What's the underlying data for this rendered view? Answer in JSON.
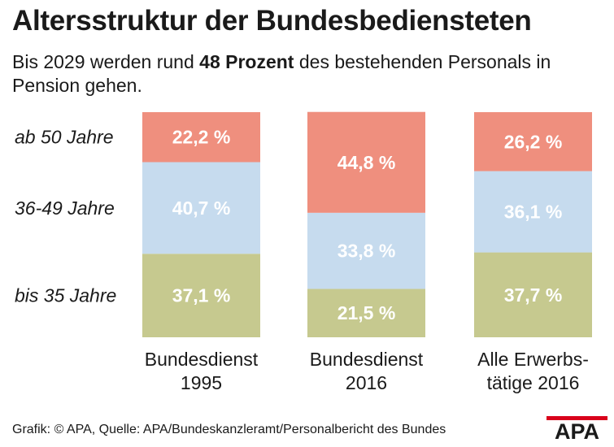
{
  "header": {
    "title": "Altersstruktur der Bundesbediensteten",
    "subtitle_before": "Bis 2029 werden rund ",
    "subtitle_bold": "48 Prozent",
    "subtitle_after": " des bestehenden Personals in Pension gehen."
  },
  "chart_data": {
    "type": "bar",
    "stacked": true,
    "normalized": true,
    "categories": [
      [
        "Bundesdienst",
        "1995"
      ],
      [
        "Bundesdienst",
        "2016"
      ],
      [
        "Alle Erwerbs-",
        "tätige 2016"
      ]
    ],
    "series": [
      {
        "name": "bis 35 Jahre",
        "values": [
          37.1,
          21.5,
          37.7
        ],
        "labels": [
          "37,1 %",
          "21,5 %",
          "37,7 %"
        ],
        "color": "#c6c98f"
      },
      {
        "name": "36-49 Jahre",
        "values": [
          40.7,
          33.8,
          36.1
        ],
        "labels": [
          "40,7 %",
          "33,8 %",
          "36,1 %"
        ],
        "color": "#c6dbee"
      },
      {
        "name": "ab 50 Jahre",
        "values": [
          22.2,
          44.8,
          26.2
        ],
        "labels": [
          "22,2 %",
          "44,8 %",
          "26,2 %"
        ],
        "color": "#ef8f7e"
      }
    ],
    "ylim": [
      0,
      100
    ],
    "unit": "%"
  },
  "footer": {
    "source": "Grafik: © APA, Quelle: APA/Bundeskanzleramt/Personalbericht des Bundes",
    "logo_text": "APA"
  }
}
